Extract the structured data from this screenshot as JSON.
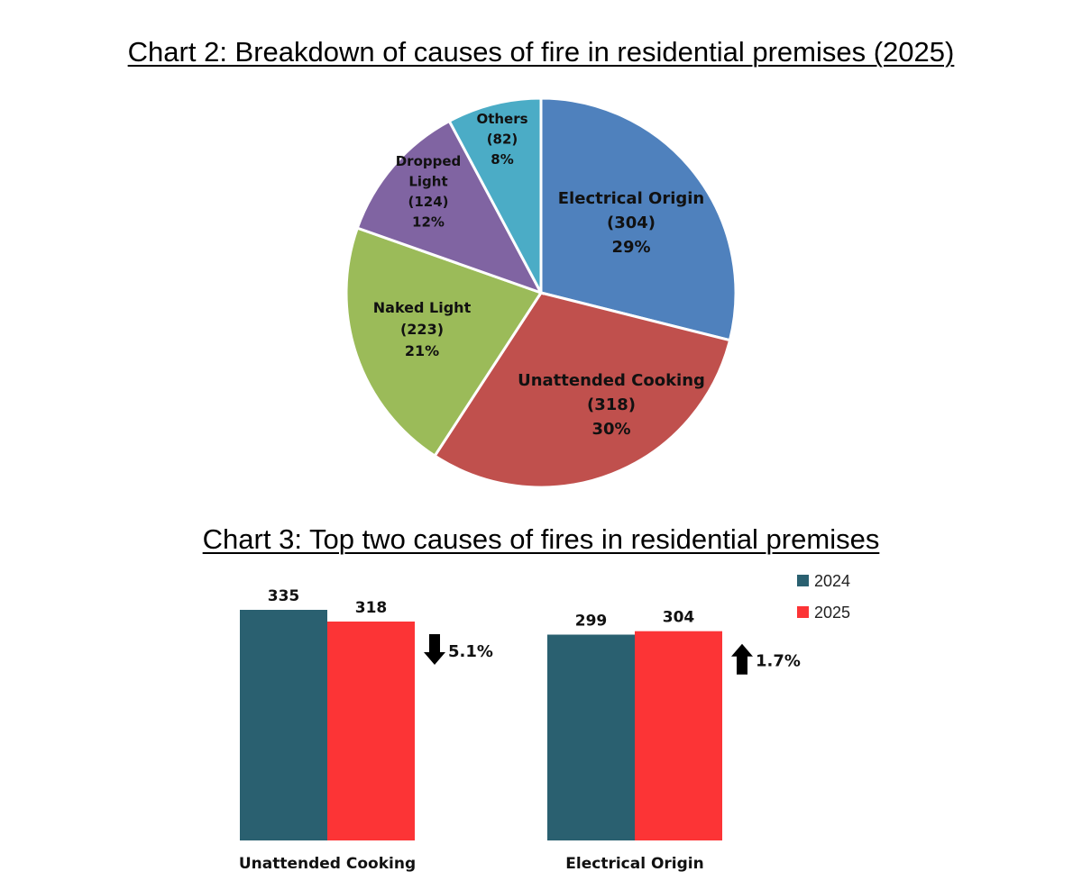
{
  "chart_data": [
    {
      "type": "pie",
      "title": "Chart 2: Breakdown of causes of fire in residential premises (2025)",
      "slices": [
        {
          "label_lines": [
            "Electrical Origin"
          ],
          "value": 304,
          "value_text": "(304)",
          "percent_text": "29%",
          "color": "#4F81BD"
        },
        {
          "label_lines": [
            "Unattended Cooking"
          ],
          "value": 318,
          "value_text": "(318)",
          "percent_text": "30%",
          "color": "#C0504D"
        },
        {
          "label_lines": [
            "Naked Light"
          ],
          "value": 223,
          "value_text": "(223)",
          "percent_text": "21%",
          "color": "#9BBB59"
        },
        {
          "label_lines": [
            "Dropped",
            "Light"
          ],
          "value": 124,
          "value_text": "(124)",
          "percent_text": "12%",
          "color": "#8064A2"
        },
        {
          "label_lines": [
            "Others"
          ],
          "value": 82,
          "value_text": "(82)",
          "percent_text": "8%",
          "color": "#4BACC6"
        }
      ]
    },
    {
      "type": "bar",
      "title": "Chart 3: Top two causes of fires in residential premises",
      "categories": [
        "Unattended Cooking",
        "Electrical Origin"
      ],
      "series": [
        {
          "name": "2024",
          "values": [
            335,
            299
          ],
          "color": "#2A6070"
        },
        {
          "name": "2025",
          "values": [
            318,
            304
          ],
          "color": "#FC3436"
        }
      ],
      "changes": [
        {
          "direction": "down",
          "text": "5.1%"
        },
        {
          "direction": "up",
          "text": "1.7%"
        }
      ],
      "legend_position": "top-right",
      "ylim": [
        0,
        335
      ]
    }
  ]
}
